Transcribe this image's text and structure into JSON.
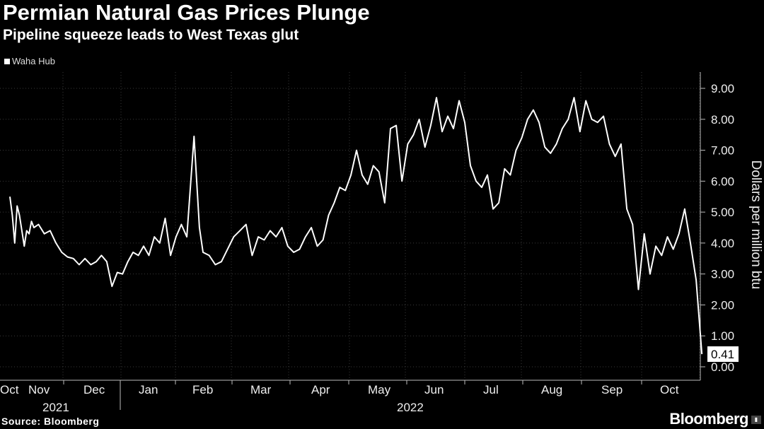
{
  "chart_data": {
    "type": "line",
    "title": "Permian Natural Gas Prices Plunge",
    "subtitle": "Pipeline squeeze leads to West Texas glut",
    "ylabel": "Dollars per million btu",
    "ylim": [
      0,
      9.0
    ],
    "yticks": [
      "9.00",
      "8.00",
      "7.00",
      "6.00",
      "5.00",
      "4.00",
      "3.00",
      "2.00",
      "1.00",
      "0.00"
    ],
    "xticks": [
      "Oct",
      "Nov",
      "Dec",
      "Jan",
      "Feb",
      "Mar",
      "Apr",
      "May",
      "Jun",
      "Jul",
      "Aug",
      "Sep",
      "Oct"
    ],
    "year_labels": [
      "2021",
      "2022"
    ],
    "last_value_label": "0.41",
    "series": [
      {
        "name": "Waha Hub",
        "color": "#ffffff",
        "points": [
          [
            "2021-10-01",
            5.5
          ],
          [
            "2021-10-04",
            4.9
          ],
          [
            "2021-10-07",
            4.0
          ],
          [
            "2021-10-10",
            5.2
          ],
          [
            "2021-10-13",
            4.9
          ],
          [
            "2021-10-16",
            4.4
          ],
          [
            "2021-10-19",
            3.9
          ],
          [
            "2021-10-22",
            4.4
          ],
          [
            "2021-10-25",
            4.3
          ],
          [
            "2021-10-28",
            4.7
          ],
          [
            "2021-10-31",
            4.5
          ],
          [
            "2021-11-03",
            4.6
          ],
          [
            "2021-11-06",
            4.3
          ],
          [
            "2021-11-09",
            4.4
          ],
          [
            "2021-11-12",
            4.0
          ],
          [
            "2021-11-15",
            3.7
          ],
          [
            "2021-11-18",
            3.55
          ],
          [
            "2021-11-21",
            3.5
          ],
          [
            "2021-11-24",
            3.3
          ],
          [
            "2021-11-27",
            3.5
          ],
          [
            "2021-11-30",
            3.3
          ],
          [
            "2021-12-03",
            3.4
          ],
          [
            "2021-12-06",
            3.6
          ],
          [
            "2021-12-09",
            3.4
          ],
          [
            "2021-12-12",
            2.6
          ],
          [
            "2021-12-15",
            3.05
          ],
          [
            "2021-12-18",
            3.0
          ],
          [
            "2021-12-21",
            3.4
          ],
          [
            "2021-12-24",
            3.7
          ],
          [
            "2021-12-27",
            3.6
          ],
          [
            "2021-12-30",
            3.9
          ],
          [
            "2022-01-02",
            3.6
          ],
          [
            "2022-01-05",
            4.2
          ],
          [
            "2022-01-08",
            4.0
          ],
          [
            "2022-01-11",
            4.8
          ],
          [
            "2022-01-14",
            3.6
          ],
          [
            "2022-01-17",
            4.2
          ],
          [
            "2022-01-20",
            4.6
          ],
          [
            "2022-01-23",
            4.2
          ],
          [
            "2022-01-27",
            7.45
          ],
          [
            "2022-01-30",
            4.5
          ],
          [
            "2022-02-01",
            3.7
          ],
          [
            "2022-02-04",
            3.6
          ],
          [
            "2022-02-07",
            3.3
          ],
          [
            "2022-02-10",
            3.4
          ],
          [
            "2022-02-13",
            3.8
          ],
          [
            "2022-02-16",
            4.2
          ],
          [
            "2022-02-19",
            4.4
          ],
          [
            "2022-02-22",
            4.6
          ],
          [
            "2022-02-25",
            3.6
          ],
          [
            "2022-02-28",
            4.2
          ],
          [
            "2022-03-03",
            4.1
          ],
          [
            "2022-03-06",
            4.4
          ],
          [
            "2022-03-09",
            4.2
          ],
          [
            "2022-03-12",
            4.5
          ],
          [
            "2022-03-15",
            3.9
          ],
          [
            "2022-03-18",
            3.7
          ],
          [
            "2022-03-21",
            3.8
          ],
          [
            "2022-03-24",
            4.2
          ],
          [
            "2022-03-27",
            4.5
          ],
          [
            "2022-03-30",
            3.9
          ],
          [
            "2022-04-02",
            4.1
          ],
          [
            "2022-04-05",
            4.9
          ],
          [
            "2022-04-08",
            5.3
          ],
          [
            "2022-04-11",
            5.8
          ],
          [
            "2022-04-14",
            5.7
          ],
          [
            "2022-04-17",
            6.2
          ],
          [
            "2022-04-20",
            7.0
          ],
          [
            "2022-04-23",
            6.2
          ],
          [
            "2022-04-26",
            5.9
          ],
          [
            "2022-04-29",
            6.5
          ],
          [
            "2022-05-02",
            6.3
          ],
          [
            "2022-05-05",
            5.3
          ],
          [
            "2022-05-08",
            7.7
          ],
          [
            "2022-05-11",
            7.8
          ],
          [
            "2022-05-14",
            6.0
          ],
          [
            "2022-05-17",
            7.2
          ],
          [
            "2022-05-20",
            7.5
          ],
          [
            "2022-05-23",
            8.0
          ],
          [
            "2022-05-26",
            7.1
          ],
          [
            "2022-05-29",
            7.8
          ],
          [
            "2022-06-01",
            8.7
          ],
          [
            "2022-06-04",
            7.6
          ],
          [
            "2022-06-07",
            8.1
          ],
          [
            "2022-06-10",
            7.7
          ],
          [
            "2022-06-13",
            8.6
          ],
          [
            "2022-06-16",
            7.9
          ],
          [
            "2022-06-19",
            6.5
          ],
          [
            "2022-06-22",
            6.0
          ],
          [
            "2022-06-25",
            5.8
          ],
          [
            "2022-06-28",
            6.2
          ],
          [
            "2022-07-01",
            5.1
          ],
          [
            "2022-07-04",
            5.3
          ],
          [
            "2022-07-07",
            6.4
          ],
          [
            "2022-07-10",
            6.2
          ],
          [
            "2022-07-13",
            7.0
          ],
          [
            "2022-07-16",
            7.4
          ],
          [
            "2022-07-19",
            8.0
          ],
          [
            "2022-07-22",
            8.3
          ],
          [
            "2022-07-25",
            7.9
          ],
          [
            "2022-07-28",
            7.1
          ],
          [
            "2022-07-31",
            6.9
          ],
          [
            "2022-08-03",
            7.2
          ],
          [
            "2022-08-06",
            7.7
          ],
          [
            "2022-08-09",
            8.0
          ],
          [
            "2022-08-12",
            8.7
          ],
          [
            "2022-08-15",
            7.6
          ],
          [
            "2022-08-18",
            8.6
          ],
          [
            "2022-08-21",
            8.0
          ],
          [
            "2022-08-24",
            7.9
          ],
          [
            "2022-08-27",
            8.1
          ],
          [
            "2022-08-30",
            7.2
          ],
          [
            "2022-09-02",
            6.8
          ],
          [
            "2022-09-05",
            7.2
          ],
          [
            "2022-09-08",
            5.1
          ],
          [
            "2022-09-11",
            4.6
          ],
          [
            "2022-09-14",
            2.5
          ],
          [
            "2022-09-17",
            4.3
          ],
          [
            "2022-09-20",
            3.0
          ],
          [
            "2022-09-23",
            3.9
          ],
          [
            "2022-09-26",
            3.6
          ],
          [
            "2022-09-29",
            4.2
          ],
          [
            "2022-10-02",
            3.8
          ],
          [
            "2022-10-05",
            4.3
          ],
          [
            "2022-10-08",
            5.1
          ],
          [
            "2022-10-11",
            4.0
          ],
          [
            "2022-10-14",
            2.8
          ],
          [
            "2022-10-17",
            0.41
          ]
        ]
      }
    ],
    "grid": true,
    "legend": "top-left"
  },
  "source": "Source: Bloomberg",
  "brand": "Bloomberg"
}
